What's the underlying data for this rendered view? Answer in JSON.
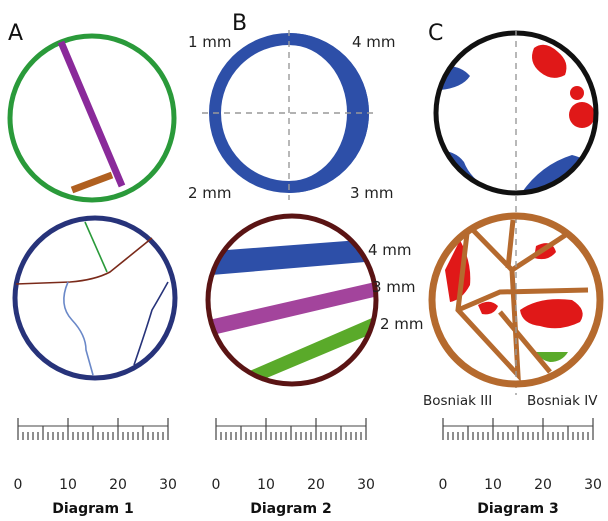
{
  "colors": {
    "green": "#2a9a3a",
    "purple": "#8a2a9a",
    "brown": "#b06020",
    "navy": "#27337a",
    "blue": "#2d4fa8",
    "red": "#e01818",
    "maroon": "#5a1414",
    "copper": "#b56a2e",
    "magenta": "#a3449c",
    "lightgreen": "#5aaa2a",
    "lightblue": "#6a88c8",
    "darkred": "#7a2a1a"
  },
  "panels": {
    "A": {
      "letter": "A"
    },
    "B": {
      "letter": "B",
      "quadrant_labels": {
        "top_left": "1 mm",
        "top_right": "4 mm",
        "bottom_left": "2 mm",
        "bottom_right": "3 mm"
      },
      "band_labels": [
        "4 mm",
        "3 mm",
        "2 mm"
      ]
    },
    "C": {
      "letter": "C",
      "bottom_labels": [
        "Bosniak III",
        "Bosniak IV"
      ]
    }
  },
  "rulers": {
    "tick_labels": [
      "0",
      "10",
      "20",
      "30"
    ],
    "captions": [
      "Diagram 1",
      "Diagram 2",
      "Diagram 3"
    ]
  }
}
